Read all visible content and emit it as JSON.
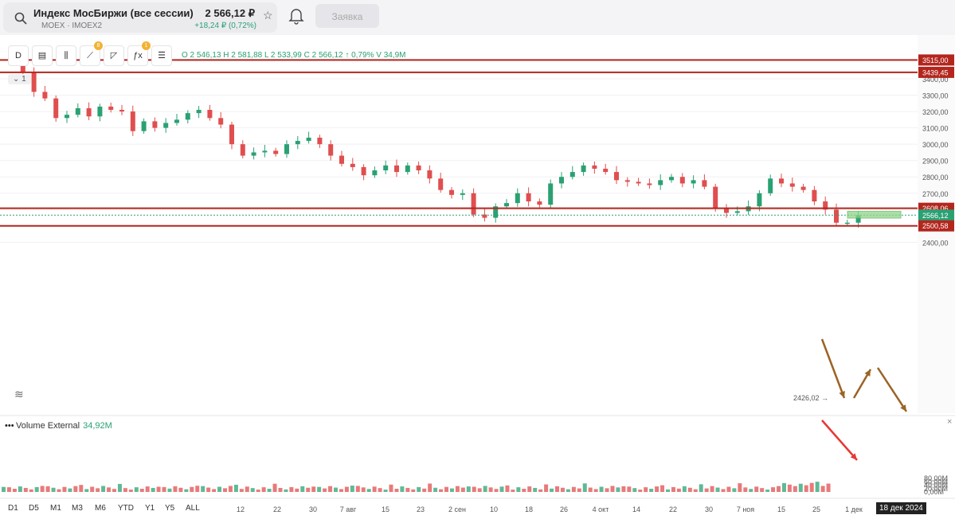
{
  "header": {
    "ticker_name": "Индекс МосБиржи (все сессии)",
    "ticker_sub": "MOEX · IMOEX2",
    "price": "2 566,12 ₽",
    "change": "+18,24 ₽ (0,72%)",
    "order_button": "Заявка"
  },
  "toolbar": {
    "interval": "D",
    "badge_draw": "8",
    "badge_indicators": "1",
    "legend_toggle": "1"
  },
  "ohlc": "O 2 546,13  H 2 581,88  L 2 533,99  C 2 566,12  ↑ 0,79%  V 34,9M",
  "price_axis": [
    "3400,00",
    "3300,00",
    "3200,00",
    "3100,00",
    "3000,00",
    "2900,00",
    "2800,00",
    "2700,00",
    "2600,00",
    "2500,00",
    "2400,00"
  ],
  "level_labels": [
    "3515,00",
    "3439,45",
    "2608,06",
    "2566,12",
    "2500,58"
  ],
  "low_annotation": "2426,02",
  "volume": {
    "label": "Volume External",
    "value": "34,92M"
  },
  "volume_axis": [
    "80,00M",
    "60,00M",
    "40,00M",
    "20,00M",
    "0,00M"
  ],
  "time_axis": [
    "12",
    "22",
    "30",
    "7 авг",
    "15",
    "23",
    "2 сен",
    "10",
    "18",
    "26",
    "4 окт",
    "14",
    "22",
    "30",
    "7 ноя",
    "15",
    "25",
    "1 дек"
  ],
  "periods": [
    "D1",
    "D5",
    "M1",
    "M3",
    "M6",
    "YTD",
    "Y1",
    "Y5",
    "ALL"
  ],
  "date_badge": "18 дек 2024",
  "colors": {
    "up": "#2aa173",
    "down": "#e04e4e",
    "level": "#b3261e",
    "arrow_brown": "#9a6424",
    "arrow_red": "#e53935"
  }
}
